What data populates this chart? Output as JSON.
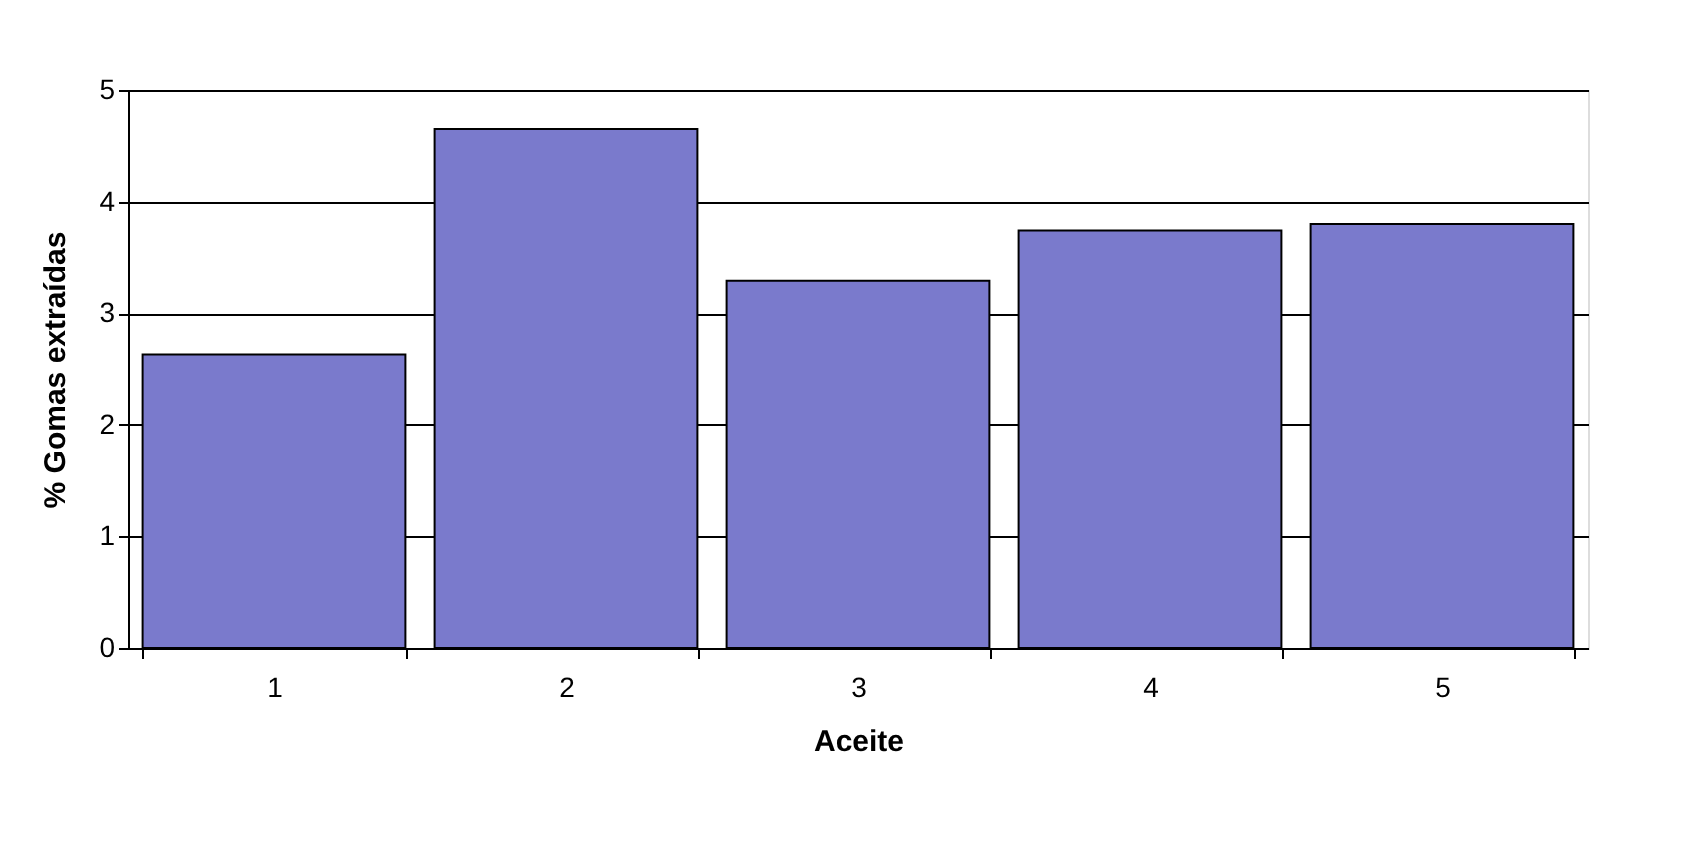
{
  "chart_data": {
    "type": "bar",
    "xlabel": "Aceite",
    "ylabel": "% Gomas extraídas",
    "categories": [
      "1",
      "2",
      "3",
      "4",
      "5"
    ],
    "values": [
      2.63,
      4.65,
      3.29,
      3.74,
      3.8
    ],
    "color": "#7a7acc",
    "ylim": [
      0,
      5
    ],
    "yticks": [
      0,
      1,
      2,
      3,
      4,
      5
    ],
    "grid": "y"
  }
}
